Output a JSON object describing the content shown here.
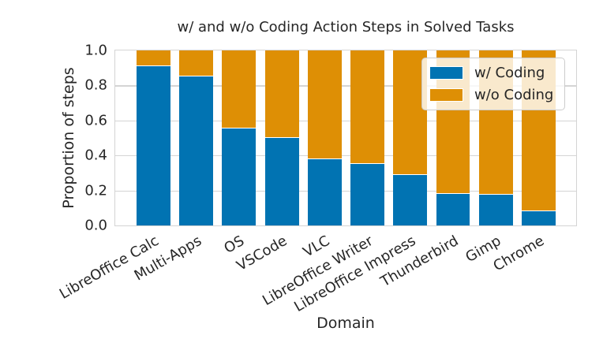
{
  "chart_data": {
    "type": "bar",
    "stacked": true,
    "title": "w/ and w/o Coding Action Steps in Solved Tasks",
    "xlabel": "Domain",
    "ylabel": "Proportion of steps",
    "categories": [
      "LibreOffice Calc",
      "Multi-Apps",
      "OS",
      "VSCode",
      "VLC",
      "LibreOffice Writer",
      "LibreOffice Impress",
      "Thunderbird",
      "Gimp",
      "Chrome"
    ],
    "series": [
      {
        "name": "w/ Coding",
        "color": "#0173b2",
        "values": [
          0.91,
          0.85,
          0.555,
          0.5,
          0.38,
          0.35,
          0.29,
          0.18,
          0.175,
          0.08
        ]
      },
      {
        "name": "w/o Coding",
        "color": "#de8f05",
        "values": [
          0.09,
          0.15,
          0.445,
          0.5,
          0.62,
          0.65,
          0.71,
          0.82,
          0.825,
          0.92
        ]
      }
    ],
    "ylim": [
      0,
      1
    ],
    "y_ticks": [
      "0.0",
      "0.2",
      "0.4",
      "0.6",
      "0.8",
      "1.0"
    ],
    "grid": true,
    "gridline_positions": [
      0.2,
      0.4,
      0.6,
      0.8
    ],
    "legend_position": "upper right",
    "colors": {
      "grid": "#d4d4d4",
      "text": "#262626",
      "background": "#ffffff"
    }
  }
}
